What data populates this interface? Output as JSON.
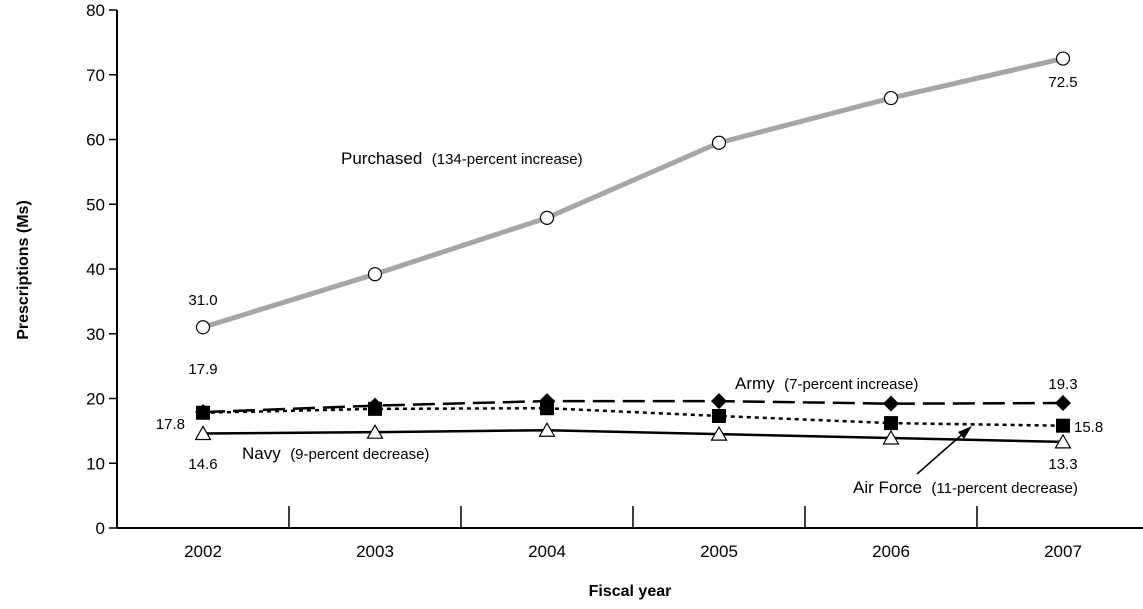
{
  "chart_data": {
    "type": "line",
    "xlabel": "Fiscal year",
    "ylabel": "Prescriptions (Ms)",
    "categories": [
      "2002",
      "2003",
      "2004",
      "2005",
      "2006",
      "2007"
    ],
    "ylim": [
      0,
      80
    ],
    "yticks": [
      "0",
      "10",
      "20",
      "30",
      "40",
      "50",
      "60",
      "70",
      "80"
    ],
    "grid": false,
    "series": [
      {
        "name": "Purchased",
        "note": "(134-percent increase)",
        "values": [
          31.0,
          39.2,
          47.9,
          59.5,
          66.4,
          72.5
        ],
        "color": "#a6a6a6",
        "marker": "open-circle",
        "dash": "solid",
        "first_label": "31.0",
        "last_label": "72.5"
      },
      {
        "name": "Army",
        "note": "(7-percent increase)",
        "values": [
          17.9,
          18.9,
          19.6,
          19.6,
          19.2,
          19.3
        ],
        "color": "#000000",
        "marker": "filled-diamond",
        "dash": "long-dash",
        "first_label": "17.9",
        "last_label": "19.3"
      },
      {
        "name": "Air Force",
        "note": "(11-percent decrease)",
        "values": [
          17.8,
          18.4,
          18.5,
          17.3,
          16.2,
          15.8
        ],
        "color": "#000000",
        "marker": "filled-square",
        "dash": "dotted",
        "first_label": "17.8",
        "last_label": "15.8"
      },
      {
        "name": "Navy",
        "note": "(9-percent decrease)",
        "values": [
          14.6,
          14.8,
          15.1,
          14.5,
          13.9,
          13.3
        ],
        "color": "#000000",
        "marker": "open-triangle",
        "dash": "solid",
        "first_label": "14.6",
        "last_label": "13.3"
      }
    ]
  }
}
